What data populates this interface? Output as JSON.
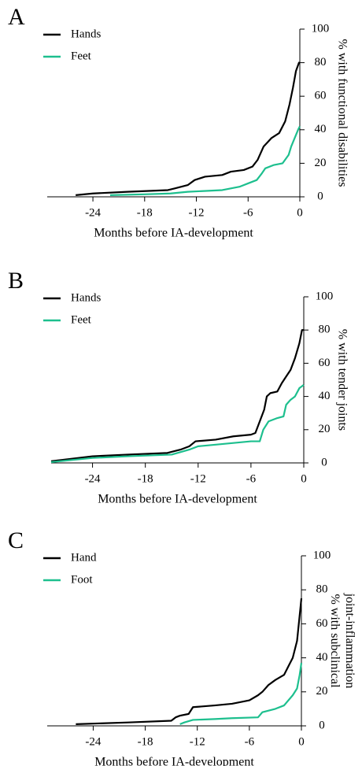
{
  "chart_data": [
    {
      "type": "line",
      "panel": "A",
      "x_label": "Months before IA-development",
      "y_label": [
        "% with functional disabilities"
      ],
      "xlim": [
        -29.3,
        0
      ],
      "xticks": [
        -24,
        -18,
        -12,
        -6,
        0
      ],
      "ylim": [
        0,
        100
      ],
      "yticks": [
        0,
        20,
        40,
        60,
        80,
        100
      ],
      "series": [
        {
          "name": "Hands",
          "color": "#000000",
          "x": [
            -26,
            -24,
            -20,
            -15.3,
            -14.5,
            -13,
            -12.2,
            -11,
            -9,
            -8,
            -6.5,
            -5.5,
            -4.9,
            -4.2,
            -3.3,
            -2.4,
            -1.7,
            -1.2,
            -0.8,
            -0.45,
            -0.1,
            0
          ],
          "values": [
            1,
            2,
            3,
            4,
            5,
            7,
            10,
            12,
            13,
            15,
            16,
            18,
            22,
            30,
            35,
            38,
            45,
            55,
            65,
            75,
            80,
            80
          ]
        },
        {
          "name": "Feet",
          "color": "#1dbf8e",
          "x": [
            -22,
            -18,
            -15,
            -13,
            -9,
            -7,
            -6,
            -5,
            -4.4,
            -4,
            -3,
            -2,
            -1.3,
            -1,
            -0.6,
            -0.2,
            0
          ],
          "values": [
            1,
            1.5,
            2,
            3,
            4,
            6,
            8,
            10,
            14,
            17,
            19,
            20,
            25,
            30,
            35,
            40,
            42
          ]
        }
      ]
    },
    {
      "type": "line",
      "panel": "B",
      "x_label": "Months before IA-development",
      "y_label": [
        "% with tender joints"
      ],
      "xlim": [
        -28.7,
        0
      ],
      "xticks": [
        -24,
        -18,
        -12,
        -6,
        0
      ],
      "ylim": [
        0,
        100
      ],
      "yticks": [
        0,
        20,
        40,
        60,
        80,
        100
      ],
      "series": [
        {
          "name": "Hands",
          "color": "#000000",
          "x": [
            -28.7,
            -24,
            -20,
            -15.5,
            -14,
            -13,
            -12.3,
            -10,
            -8,
            -6,
            -5.5,
            -5,
            -4.5,
            -4.2,
            -3.8,
            -3,
            -2.5,
            -2,
            -1.5,
            -1,
            -0.5,
            -0.2,
            0
          ],
          "values": [
            1,
            4,
            5,
            6,
            8,
            10,
            13,
            14,
            16,
            17,
            18,
            25,
            32,
            40,
            42,
            43,
            48,
            52,
            56,
            63,
            72,
            80,
            80
          ]
        },
        {
          "name": "Feet",
          "color": "#1dbf8e",
          "x": [
            -28.7,
            -24,
            -20,
            -15,
            -13,
            -12,
            -10,
            -6,
            -5,
            -4.6,
            -4,
            -3,
            -2.3,
            -2,
            -1.5,
            -1,
            -0.5,
            0
          ],
          "values": [
            0.5,
            3,
            4,
            5,
            8,
            10,
            11,
            13,
            13,
            20,
            25,
            27,
            28,
            35,
            38,
            40,
            45,
            47
          ]
        }
      ]
    },
    {
      "type": "line",
      "panel": "C",
      "x_label": "Months before IA-development",
      "y_label": [
        "% with subclinical",
        "joint-inflammation"
      ],
      "xlim": [
        -29.3,
        0
      ],
      "xticks": [
        -24,
        -18,
        -12,
        -6,
        0
      ],
      "ylim": [
        0,
        100
      ],
      "yticks": [
        0,
        20,
        40,
        60,
        80,
        100
      ],
      "series": [
        {
          "name": "Hand",
          "color": "#000000",
          "x": [
            -26,
            -20,
            -15,
            -14.5,
            -14,
            -13,
            -12.5,
            -10,
            -8,
            -6,
            -5,
            -4.5,
            -3.8,
            -3,
            -2,
            -1.5,
            -1,
            -0.5,
            -0.2,
            0
          ],
          "values": [
            1,
            2,
            3,
            5,
            6,
            7,
            11,
            12,
            13,
            15,
            18,
            20,
            24,
            27,
            30,
            35,
            40,
            50,
            65,
            75
          ]
        },
        {
          "name": "Foot",
          "color": "#1dbf8e",
          "x": [
            -14,
            -13.5,
            -12.5,
            -10,
            -8,
            -5,
            -4.5,
            -3,
            -2,
            -1,
            -0.5,
            -0.2,
            0
          ],
          "values": [
            1,
            2,
            3.5,
            4,
            4.5,
            5,
            8,
            10,
            12,
            18,
            22,
            30,
            37
          ]
        }
      ]
    }
  ]
}
